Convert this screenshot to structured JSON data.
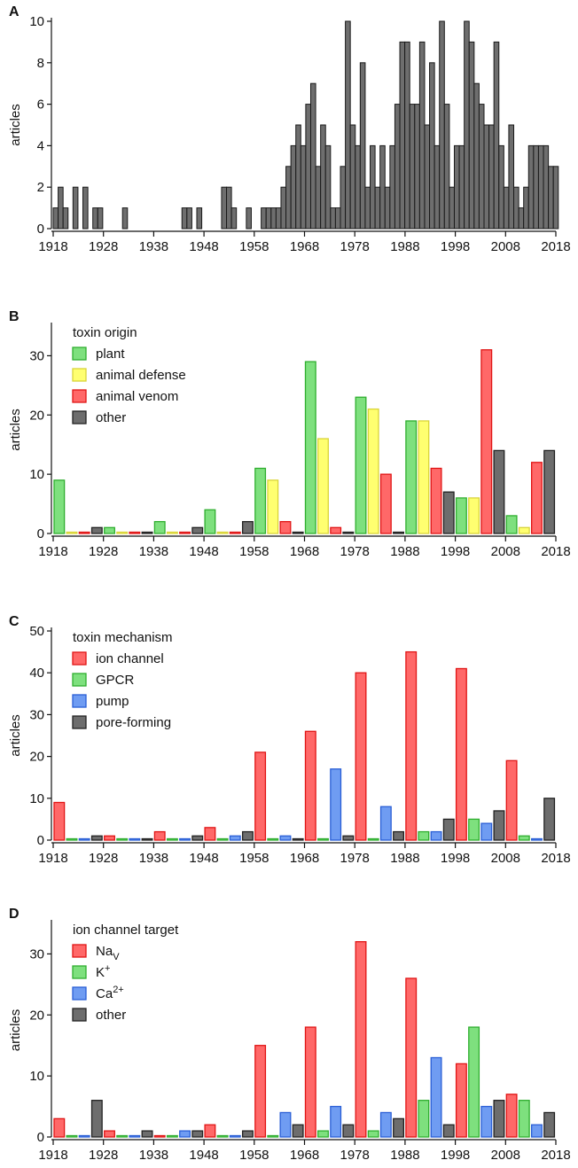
{
  "colors": {
    "plant": {
      "fill": "#7ee07e",
      "stroke": "#2fae2f"
    },
    "animal_defense": {
      "fill": "#ffff70",
      "stroke": "#d9d43a"
    },
    "animal_venom": {
      "fill": "#ff6868",
      "stroke": "#e01515"
    },
    "ion_channel": {
      "fill": "#ff6868",
      "stroke": "#e01515"
    },
    "gpcr": {
      "fill": "#7ee07e",
      "stroke": "#2fae2f"
    },
    "pump": {
      "fill": "#6f9cf2",
      "stroke": "#2a5fd6"
    },
    "other": {
      "fill": "#6d6d6d",
      "stroke": "#222222"
    },
    "panel_a": {
      "fill": "#6e6e6e",
      "stroke": "#1a1a1a"
    }
  },
  "chart_data": [
    {
      "panel": "A",
      "type": "bar",
      "ylabel": "articles",
      "ylim": [
        0,
        10
      ],
      "yticks": [
        "0",
        "2",
        "4",
        "6",
        "8",
        "10"
      ],
      "xticks": [
        "1918",
        "1928",
        "1938",
        "1948",
        "1958",
        "1968",
        "1978",
        "1988",
        "1998",
        "2008",
        "2018"
      ],
      "x_start": 1918,
      "values": [
        1,
        2,
        1,
        0,
        2,
        0,
        2,
        0,
        1,
        1,
        0,
        0,
        0,
        0,
        1,
        0,
        0,
        0,
        0,
        0,
        0,
        0,
        0,
        0,
        0,
        0,
        1,
        1,
        0,
        1,
        0,
        0,
        0,
        0,
        2,
        2,
        1,
        0,
        0,
        1,
        0,
        0,
        1,
        1,
        1,
        1,
        2,
        3,
        4,
        5,
        4,
        6,
        7,
        3,
        5,
        4,
        1,
        1,
        3,
        10,
        5,
        4,
        8,
        2,
        4,
        2,
        4,
        2,
        4,
        6,
        9,
        9,
        6,
        6,
        9,
        5,
        8,
        4,
        10,
        6,
        2,
        4,
        4,
        10,
        9,
        7,
        6,
        5,
        5,
        9,
        4,
        2,
        5,
        2,
        1,
        2,
        4,
        4,
        4,
        4,
        3,
        3
      ],
      "legend": null
    },
    {
      "panel": "B",
      "type": "bar",
      "ylabel": "articles",
      "ylim": [
        0,
        35
      ],
      "yticks": [
        "0",
        "10",
        "20",
        "30"
      ],
      "xticks": [
        "1918",
        "1928",
        "1938",
        "1948",
        "1958",
        "1968",
        "1978",
        "1988",
        "1998",
        "2008",
        "2018"
      ],
      "legend_title": "toxin origin",
      "legend_placement": "top-left",
      "series": [
        {
          "name": "plant",
          "color_key": "plant",
          "values": [
            9,
            1,
            2,
            4,
            11,
            29,
            23,
            19,
            6,
            3
          ]
        },
        {
          "name": "animal defense",
          "color_key": "animal_defense",
          "values": [
            0,
            0,
            0,
            0,
            9,
            16,
            21,
            19,
            6,
            1
          ]
        },
        {
          "name": "animal venom",
          "color_key": "animal_venom",
          "values": [
            0,
            0,
            0,
            0,
            2,
            1,
            10,
            11,
            31,
            12
          ]
        },
        {
          "name": "other",
          "color_key": "other",
          "values": [
            1,
            0,
            1,
            2,
            0,
            0,
            0,
            7,
            14,
            14
          ]
        }
      ]
    },
    {
      "panel": "C",
      "type": "bar",
      "ylabel": "articles",
      "ylim": [
        0,
        50
      ],
      "yticks": [
        "0",
        "10",
        "20",
        "30",
        "40",
        "50"
      ],
      "xticks": [
        "1918",
        "1928",
        "1938",
        "1948",
        "1958",
        "1968",
        "1978",
        "1988",
        "1998",
        "2008",
        "2018"
      ],
      "legend_title": "toxin mechanism",
      "legend_placement": "top-left",
      "series": [
        {
          "name": "ion channel",
          "color_key": "ion_channel",
          "values": [
            9,
            1,
            2,
            3,
            21,
            26,
            40,
            45,
            41,
            19
          ]
        },
        {
          "name": "GPCR",
          "color_key": "gpcr",
          "values": [
            0,
            0,
            0,
            0,
            0,
            0,
            0,
            2,
            5,
            1
          ]
        },
        {
          "name": "pump",
          "color_key": "pump",
          "values": [
            0,
            0,
            0,
            1,
            1,
            17,
            8,
            2,
            4,
            0
          ]
        },
        {
          "name": "pore-forming",
          "color_key": "other",
          "values": [
            1,
            0,
            1,
            2,
            0,
            1,
            2,
            5,
            7,
            10
          ]
        }
      ]
    },
    {
      "panel": "D",
      "type": "bar",
      "ylabel": "articles",
      "ylim": [
        0,
        35
      ],
      "yticks": [
        "0",
        "10",
        "20",
        "30"
      ],
      "xticks": [
        "1918",
        "1928",
        "1938",
        "1948",
        "1958",
        "1968",
        "1978",
        "1988",
        "1998",
        "2008",
        "2018"
      ],
      "legend_title": "ion channel target",
      "legend_placement": "top-left",
      "series": [
        {
          "name": "Na",
          "name_sub": "V",
          "color_key": "ion_channel",
          "values": [
            3,
            1,
            0,
            2,
            15,
            18,
            32,
            26,
            12,
            7
          ]
        },
        {
          "name": "K",
          "name_sup": "+",
          "color_key": "gpcr",
          "values": [
            0,
            0,
            0,
            0,
            0,
            1,
            1,
            6,
            18,
            6
          ]
        },
        {
          "name": "Ca",
          "name_sup": "2+",
          "color_key": "pump",
          "values": [
            0,
            0,
            1,
            0,
            4,
            5,
            4,
            13,
            5,
            2
          ]
        },
        {
          "name": "other",
          "color_key": "other",
          "values": [
            6,
            1,
            1,
            1,
            2,
            2,
            3,
            2,
            6,
            4
          ]
        }
      ]
    }
  ]
}
